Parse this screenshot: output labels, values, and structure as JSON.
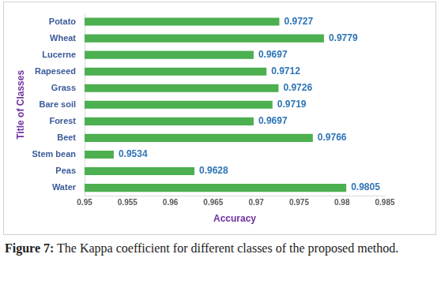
{
  "chart_data": {
    "type": "bar",
    "orientation": "horizontal",
    "x_label": "Accuracy",
    "y_label": "Title of Classes",
    "categories": [
      "Potato",
      "Wheat",
      "Lucerne",
      "Rapeseed",
      "Grass",
      "Bare soil",
      "Forest",
      "Beet",
      "Stem bean",
      "Peas",
      "Water"
    ],
    "values": [
      0.9727,
      0.9779,
      0.9697,
      0.9712,
      0.9726,
      0.9719,
      0.9697,
      0.9766,
      0.9534,
      0.9628,
      0.9805
    ],
    "color": "#4caf50",
    "xlim": [
      0.95,
      0.985
    ],
    "xticks": [
      0.95,
      0.955,
      0.96,
      0.965,
      0.97,
      0.975,
      0.98,
      0.985
    ],
    "grid": false,
    "data_labels": true
  },
  "caption": {
    "label": "Figure 7:",
    "text": "The Kappa coefficient for different classes of the proposed method."
  }
}
